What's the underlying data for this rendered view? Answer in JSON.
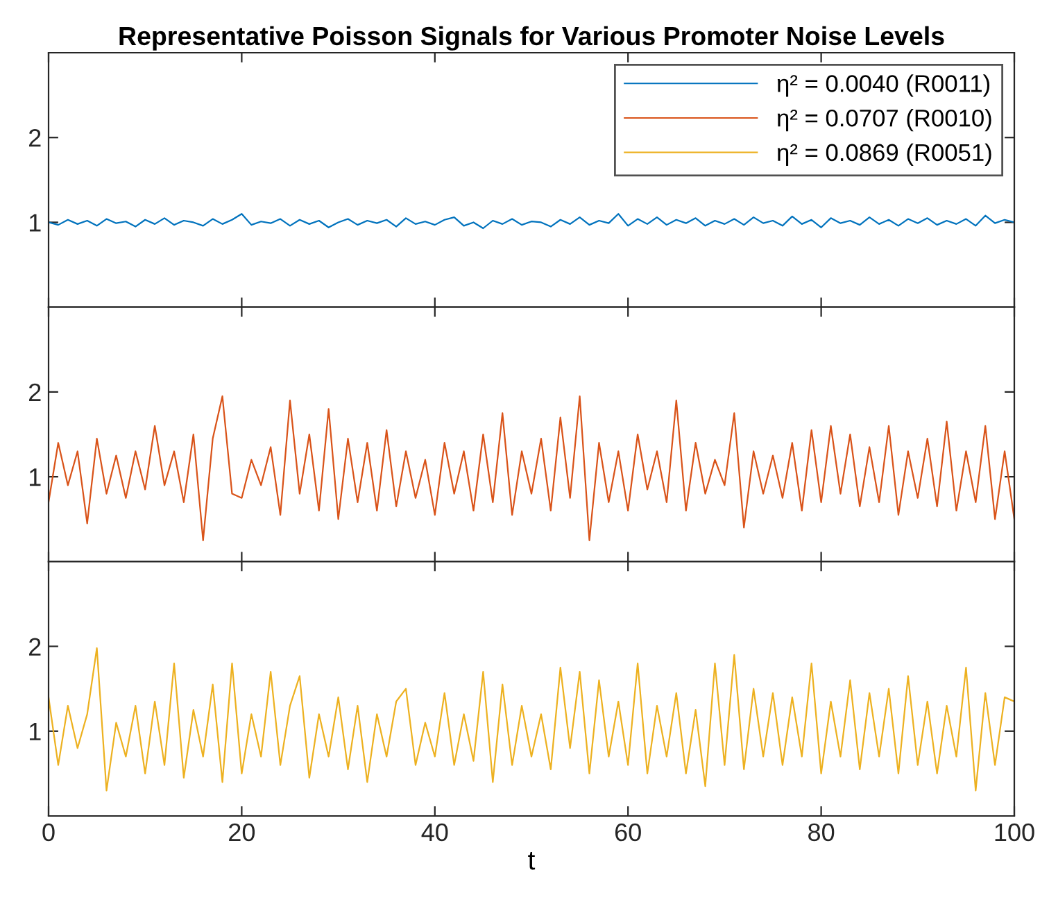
{
  "chart_data": [
    {
      "type": "line",
      "title": "Representative Poisson Signals for Various Promoter Noise Levels",
      "xlim": [
        0,
        100
      ],
      "xticks": [
        0,
        20,
        40,
        60,
        80,
        100
      ],
      "ylim": [
        0,
        3
      ],
      "yticks": [
        1,
        2
      ],
      "tick_labels": "y",
      "legend": "top right",
      "grid": false,
      "series": [
        {
          "name": "η² = 0.0040 (R0011)",
          "color": "#0072bd",
          "x": [
            0,
            1,
            2,
            3,
            4,
            5,
            6,
            7,
            8,
            9,
            10,
            11,
            12,
            13,
            14,
            15,
            16,
            17,
            18,
            19,
            20,
            21,
            22,
            23,
            24,
            25,
            26,
            27,
            28,
            29,
            30,
            31,
            32,
            33,
            34,
            35,
            36,
            37,
            38,
            39,
            40,
            41,
            42,
            43,
            44,
            45,
            46,
            47,
            48,
            49,
            50,
            51,
            52,
            53,
            54,
            55,
            56,
            57,
            58,
            59,
            60,
            61,
            62,
            63,
            64,
            65,
            66,
            67,
            68,
            69,
            70,
            71,
            72,
            73,
            74,
            75,
            76,
            77,
            78,
            79,
            80,
            81,
            82,
            83,
            84,
            85,
            86,
            87,
            88,
            89,
            90,
            91,
            92,
            93,
            94,
            95,
            96,
            97,
            98,
            99,
            100
          ],
          "values": [
            1.0,
            0.97,
            1.03,
            0.98,
            1.02,
            0.96,
            1.04,
            0.99,
            1.01,
            0.95,
            1.03,
            0.98,
            1.05,
            0.97,
            1.02,
            1.0,
            0.96,
            1.04,
            0.98,
            1.03,
            1.1,
            0.97,
            1.01,
            0.99,
            1.04,
            0.96,
            1.03,
            0.98,
            1.02,
            0.94,
            1.0,
            1.04,
            0.97,
            1.02,
            0.99,
            1.03,
            0.95,
            1.05,
            0.98,
            1.01,
            0.97,
            1.03,
            1.06,
            0.96,
            1.0,
            0.93,
            1.02,
            0.98,
            1.04,
            0.97,
            1.01,
            1.0,
            0.95,
            1.03,
            0.98,
            1.06,
            0.97,
            1.02,
            0.99,
            1.1,
            0.96,
            1.04,
            0.98,
            1.06,
            0.97,
            1.03,
            0.99,
            1.05,
            0.96,
            1.02,
            0.98,
            1.04,
            0.97,
            1.06,
            0.99,
            1.02,
            0.96,
            1.07,
            0.98,
            1.03,
            0.94,
            1.05,
            0.99,
            1.02,
            0.97,
            1.06,
            0.98,
            1.03,
            0.96,
            1.04,
            0.99,
            1.05,
            0.97,
            1.02,
            0.98,
            1.04,
            0.96,
            1.08,
            0.99,
            1.03,
            1.0
          ]
        }
      ]
    },
    {
      "type": "line",
      "xlim": [
        0,
        100
      ],
      "xticks": [
        0,
        20,
        40,
        60,
        80,
        100
      ],
      "ylim": [
        0,
        3
      ],
      "yticks": [
        1,
        2
      ],
      "tick_labels": "y",
      "grid": false,
      "series": [
        {
          "name": "η² = 0.0707 (R0010)",
          "color": "#d95319",
          "x": [
            0,
            1,
            2,
            3,
            4,
            5,
            6,
            7,
            8,
            9,
            10,
            11,
            12,
            13,
            14,
            15,
            16,
            17,
            18,
            19,
            20,
            21,
            22,
            23,
            24,
            25,
            26,
            27,
            28,
            29,
            30,
            31,
            32,
            33,
            34,
            35,
            36,
            37,
            38,
            39,
            40,
            41,
            42,
            43,
            44,
            45,
            46,
            47,
            48,
            49,
            50,
            51,
            52,
            53,
            54,
            55,
            56,
            57,
            58,
            59,
            60,
            61,
            62,
            63,
            64,
            65,
            66,
            67,
            68,
            69,
            70,
            71,
            72,
            73,
            74,
            75,
            76,
            77,
            78,
            79,
            80,
            81,
            82,
            83,
            84,
            85,
            86,
            87,
            88,
            89,
            90,
            91,
            92,
            93,
            94,
            95,
            96,
            97,
            98,
            99,
            100
          ],
          "values": [
            0.7,
            1.4,
            0.9,
            1.3,
            0.45,
            1.45,
            0.8,
            1.25,
            0.75,
            1.3,
            0.85,
            1.6,
            0.9,
            1.3,
            0.7,
            1.5,
            0.25,
            1.45,
            1.95,
            0.8,
            0.75,
            1.2,
            0.9,
            1.35,
            0.55,
            1.9,
            0.8,
            1.5,
            0.6,
            1.8,
            0.5,
            1.45,
            0.7,
            1.4,
            0.6,
            1.55,
            0.65,
            1.3,
            0.75,
            1.2,
            0.55,
            1.4,
            0.8,
            1.3,
            0.6,
            1.5,
            0.7,
            1.75,
            0.55,
            1.3,
            0.8,
            1.45,
            0.6,
            1.7,
            0.75,
            1.95,
            0.25,
            1.4,
            0.7,
            1.3,
            0.6,
            1.5,
            0.85,
            1.3,
            0.7,
            1.9,
            0.6,
            1.4,
            0.8,
            1.2,
            0.9,
            1.75,
            0.4,
            1.3,
            0.8,
            1.25,
            0.75,
            1.4,
            0.6,
            1.55,
            0.7,
            1.6,
            0.8,
            1.5,
            0.65,
            1.35,
            0.7,
            1.6,
            0.55,
            1.3,
            0.75,
            1.45,
            0.65,
            1.65,
            0.6,
            1.3,
            0.7,
            1.6,
            0.5,
            1.3,
            0.5
          ]
        }
      ]
    },
    {
      "type": "line",
      "xlabel": "t",
      "xlim": [
        0,
        100
      ],
      "xticks": [
        0,
        20,
        40,
        60,
        80,
        100
      ],
      "ylim": [
        0,
        3
      ],
      "yticks": [
        1,
        2
      ],
      "grid": false,
      "series": [
        {
          "name": "η² = 0.0869 (R0051)",
          "color": "#edb120",
          "x": [
            0,
            1,
            2,
            3,
            4,
            5,
            6,
            7,
            8,
            9,
            10,
            11,
            12,
            13,
            14,
            15,
            16,
            17,
            18,
            19,
            20,
            21,
            22,
            23,
            24,
            25,
            26,
            27,
            28,
            29,
            30,
            31,
            32,
            33,
            34,
            35,
            36,
            37,
            38,
            39,
            40,
            41,
            42,
            43,
            44,
            45,
            46,
            47,
            48,
            49,
            50,
            51,
            52,
            53,
            54,
            55,
            56,
            57,
            58,
            59,
            60,
            61,
            62,
            63,
            64,
            65,
            66,
            67,
            68,
            69,
            70,
            71,
            72,
            73,
            74,
            75,
            76,
            77,
            78,
            79,
            80,
            81,
            82,
            83,
            84,
            85,
            86,
            87,
            88,
            89,
            90,
            91,
            92,
            93,
            94,
            95,
            96,
            97,
            98,
            99,
            100
          ],
          "values": [
            1.4,
            0.6,
            1.3,
            0.8,
            1.2,
            1.98,
            0.3,
            1.1,
            0.7,
            1.3,
            0.5,
            1.35,
            0.6,
            1.8,
            0.45,
            1.25,
            0.7,
            1.55,
            0.4,
            1.8,
            0.5,
            1.2,
            0.7,
            1.7,
            0.6,
            1.3,
            1.65,
            0.45,
            1.2,
            0.7,
            1.4,
            0.55,
            1.3,
            0.4,
            1.2,
            0.7,
            1.35,
            1.5,
            0.6,
            1.1,
            0.7,
            1.45,
            0.6,
            1.2,
            0.65,
            1.7,
            0.4,
            1.55,
            0.6,
            1.3,
            0.7,
            1.2,
            0.55,
            1.75,
            0.8,
            1.7,
            0.5,
            1.6,
            0.7,
            1.35,
            0.6,
            1.8,
            0.5,
            1.3,
            0.7,
            1.45,
            0.5,
            1.25,
            0.35,
            1.8,
            0.6,
            1.9,
            0.55,
            1.5,
            0.7,
            1.45,
            0.6,
            1.4,
            0.7,
            1.8,
            0.5,
            1.35,
            0.7,
            1.6,
            0.55,
            1.45,
            0.7,
            1.5,
            0.5,
            1.65,
            0.6,
            1.35,
            0.5,
            1.3,
            0.7,
            1.75,
            0.3,
            1.45,
            0.6,
            1.4,
            1.35
          ]
        }
      ]
    }
  ]
}
